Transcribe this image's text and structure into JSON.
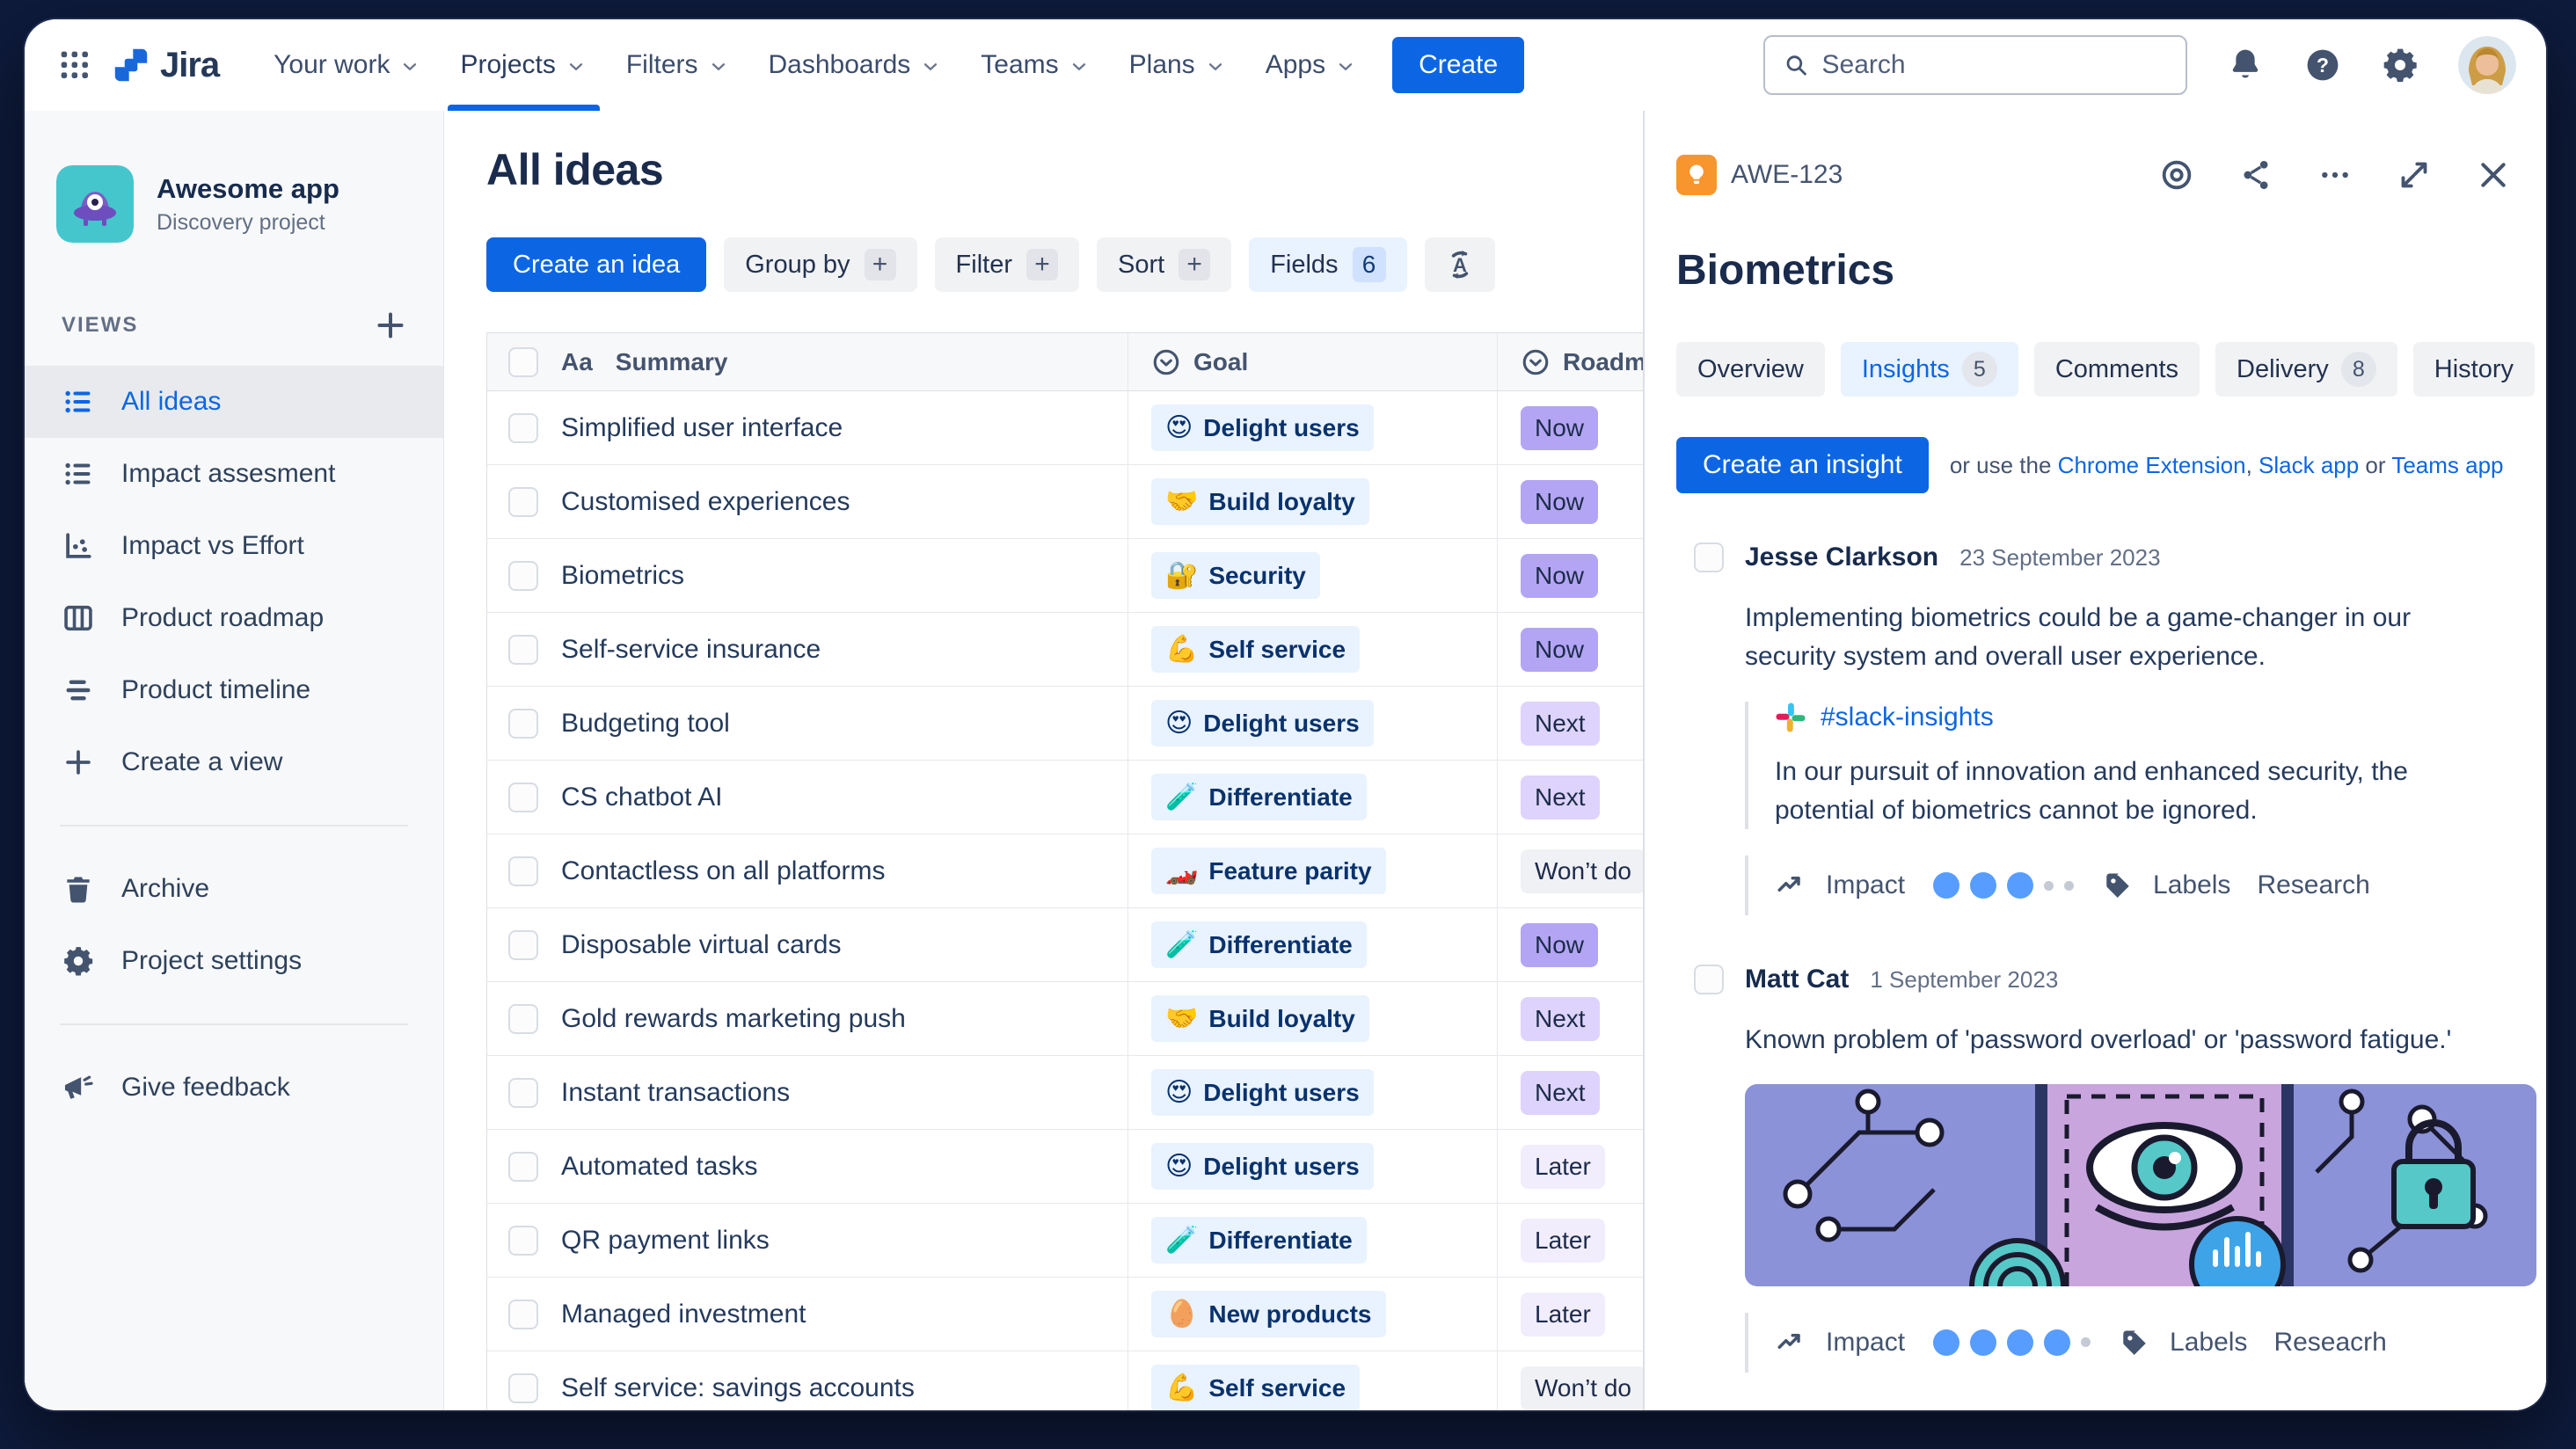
{
  "icons_used": [
    "app-grid-icon",
    "jira-logo-icon",
    "chevron-down-icon",
    "search-icon",
    "notifications-icon",
    "help-icon",
    "settings-icon",
    "plus-icon",
    "list-view-icon",
    "scatter-chart-icon",
    "board-icon",
    "timeline-icon",
    "trash-icon",
    "gear-icon",
    "megaphone-icon",
    "text-field-icon",
    "select-field-icon",
    "az-sync-icon",
    "lightbulb-icon",
    "watch-icon",
    "share-icon",
    "more-icon",
    "expand-icon",
    "close-icon",
    "trend-icon",
    "tag-icon",
    "slack-icon"
  ],
  "colors": {
    "accent_blue": "#0C66E4",
    "active_tab_bg": "#E9F2FF",
    "now": "#B3A5F4",
    "next": "#DDD3FC",
    "later": "#F1EDFD",
    "wont_do": "#F0F1F4",
    "idea_orange": "#F8952D",
    "impact_dot": "#579DFF"
  },
  "topnav": {
    "logo_text": "Jira",
    "items": [
      {
        "label": "Your work"
      },
      {
        "label": "Projects",
        "active": true
      },
      {
        "label": "Filters"
      },
      {
        "label": "Dashboards"
      },
      {
        "label": "Teams"
      },
      {
        "label": "Plans"
      },
      {
        "label": "Apps"
      }
    ],
    "create_label": "Create",
    "search": {
      "placeholder": "Search"
    }
  },
  "sidebar": {
    "project": {
      "name": "Awesome app",
      "type": "Discovery project"
    },
    "views_header": "VIEWS",
    "views": [
      {
        "label": "All ideas",
        "icon": "list-view-icon",
        "active": true
      },
      {
        "label": "Impact assesment",
        "icon": "list-view-icon"
      },
      {
        "label": "Impact vs Effort",
        "icon": "scatter-chart-icon"
      },
      {
        "label": "Product roadmap",
        "icon": "board-icon"
      },
      {
        "label": "Product timeline",
        "icon": "timeline-icon"
      },
      {
        "label": "Create a view",
        "icon": "plus-icon"
      }
    ],
    "tools": [
      {
        "label": "Archive",
        "icon": "trash-icon"
      },
      {
        "label": "Project settings",
        "icon": "gear-icon"
      }
    ],
    "feedback": {
      "label": "Give feedback",
      "icon": "megaphone-icon"
    }
  },
  "main": {
    "title": "All ideas",
    "toolbar": {
      "create": "Create an idea",
      "group_by": "Group by",
      "filter": "Filter",
      "sort": "Sort",
      "fields": "Fields",
      "fields_count": "6",
      "plus": "+"
    },
    "table": {
      "headers": {
        "summary": "Summary",
        "goal": "Goal",
        "roadmap": "Roadmap",
        "aa": "Aa"
      },
      "rows": [
        {
          "summary": "Simplified user interface",
          "goal_emoji": "😍",
          "goal": "Delight users",
          "roadmap": "Now"
        },
        {
          "summary": "Customised experiences",
          "goal_emoji": "🤝",
          "goal": "Build loyalty",
          "roadmap": "Now"
        },
        {
          "summary": "Biometrics",
          "goal_emoji": "🔐",
          "goal": "Security",
          "roadmap": "Now"
        },
        {
          "summary": "Self-service insurance",
          "goal_emoji": "💪",
          "goal": "Self service",
          "roadmap": "Now"
        },
        {
          "summary": "Budgeting tool",
          "goal_emoji": "😍",
          "goal": "Delight users",
          "roadmap": "Next"
        },
        {
          "summary": "CS chatbot AI",
          "goal_emoji": "🧪",
          "goal": "Differentiate",
          "roadmap": "Next"
        },
        {
          "summary": "Contactless on all platforms",
          "goal_emoji": "🏎️",
          "goal": "Feature parity",
          "roadmap": "Won’t do"
        },
        {
          "summary": "Disposable virtual cards",
          "goal_emoji": "🧪",
          "goal": "Differentiate",
          "roadmap": "Now"
        },
        {
          "summary": "Gold rewards marketing push",
          "goal_emoji": "🤝",
          "goal": "Build loyalty",
          "roadmap": "Next"
        },
        {
          "summary": "Instant transactions",
          "goal_emoji": "😍",
          "goal": "Delight users",
          "roadmap": "Next"
        },
        {
          "summary": "Automated tasks",
          "goal_emoji": "😍",
          "goal": "Delight users",
          "roadmap": "Later"
        },
        {
          "summary": "QR payment links",
          "goal_emoji": "🧪",
          "goal": "Differentiate",
          "roadmap": "Later"
        },
        {
          "summary": "Managed investment",
          "goal_emoji": "🥚",
          "goal": "New products",
          "roadmap": "Later"
        },
        {
          "summary": "Self service: savings accounts",
          "goal_emoji": "💪",
          "goal": "Self service",
          "roadmap": "Won’t do"
        }
      ]
    }
  },
  "panel": {
    "key": "AWE-123",
    "title": "Biometrics",
    "tabs": [
      {
        "label": "Overview"
      },
      {
        "label": "Insights",
        "count": "5",
        "active": true
      },
      {
        "label": "Comments"
      },
      {
        "label": "Delivery",
        "count": "8"
      },
      {
        "label": "History"
      }
    ],
    "create_insight": "Create an insight",
    "helper": {
      "t1": "or use the ",
      "link1": "Chrome Extension",
      "t2": ", ",
      "link2": "Slack app",
      "t3": " or ",
      "link3": "Teams app"
    },
    "insights": [
      {
        "author": "Jesse Clarkson",
        "date": "23 September 2023",
        "text": "Implementing biometrics could be a game-changer in our security system and overall user experience.",
        "slack_channel": "#slack-insights",
        "quote": "In our pursuit of innovation and enhanced security, the potential of biometrics cannot be ignored.",
        "impact_label": "Impact",
        "impact_filled": 3,
        "impact_total": 5,
        "labels_label": "Labels",
        "label_value": "Research"
      },
      {
        "author": "Matt Cat",
        "date": "1 September 2023",
        "text": "Known problem of 'password overload' or 'password fatigue.'",
        "impact_label": "Impact",
        "impact_filled": 4,
        "impact_total": 5,
        "labels_label": "Labels",
        "label_value": "Reseacrh"
      }
    ]
  }
}
